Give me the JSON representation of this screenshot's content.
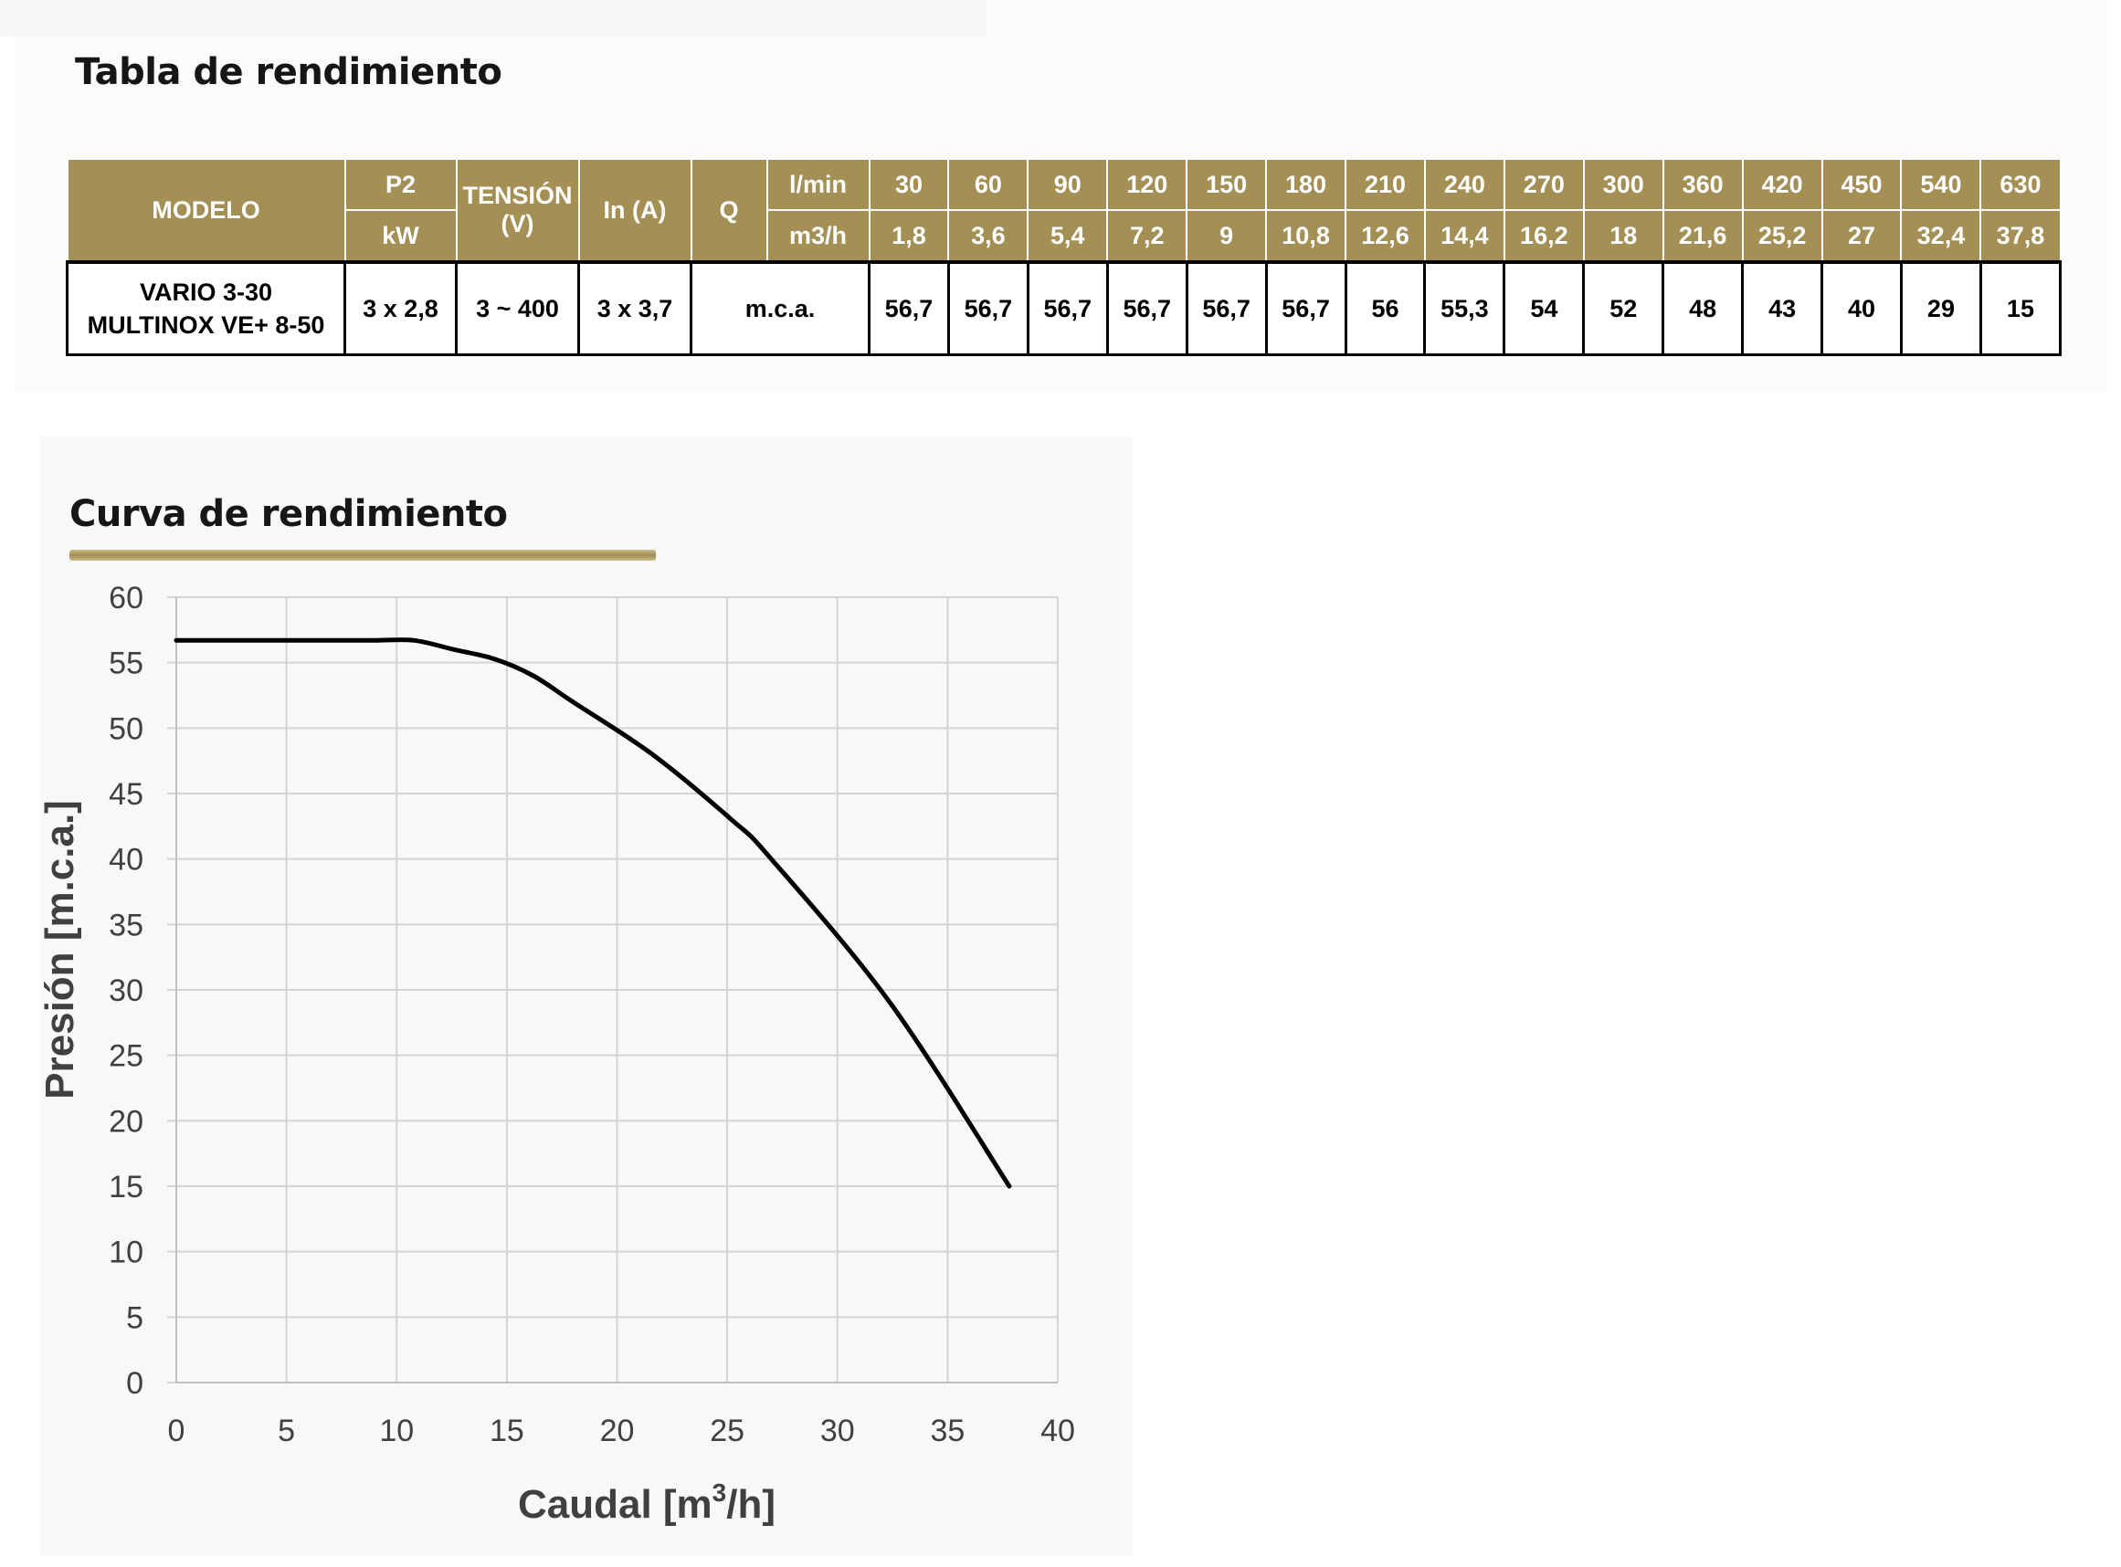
{
  "table_title": "Tabla de rendimiento",
  "curve_title": "Curva de rendimiento",
  "colors": {
    "header_bg": "#a48f55",
    "header_text": "#ffffff",
    "accent_bar": "#9e8d52",
    "curve": "#000000",
    "grid": "#d4d4d4"
  },
  "table": {
    "h_modelo": "MODELO",
    "h_p2": "P2",
    "h_kw": "kW",
    "h_tension_1": "TENSIÓN",
    "h_tension_2": "(V)",
    "h_in": "In (A)",
    "h_q": "Q",
    "h_lmin": "l/min",
    "h_m3h": "m3/h",
    "lmin": [
      "30",
      "60",
      "90",
      "120",
      "150",
      "180",
      "210",
      "240",
      "270",
      "300",
      "360",
      "420",
      "450",
      "540",
      "630"
    ],
    "m3h": [
      "1,8",
      "3,6",
      "5,4",
      "7,2",
      "9",
      "10,8",
      "12,6",
      "14,4",
      "16,2",
      "18",
      "21,6",
      "25,2",
      "27",
      "32,4",
      "37,8"
    ],
    "row": {
      "model_1": "VARIO 3-30",
      "model_2": "MULTINOX VE+ 8-50",
      "p2": "3 x 2,8",
      "tension": "3 ~ 400",
      "in": "3 x 3,7",
      "unit": "m.c.a.",
      "values": [
        "56,7",
        "56,7",
        "56,7",
        "56,7",
        "56,7",
        "56,7",
        "56",
        "55,3",
        "54",
        "52",
        "48",
        "43",
        "40",
        "29",
        "15"
      ]
    }
  },
  "chart_data": {
    "type": "line",
    "title": "Curva de rendimiento",
    "xlabel_main": "Caudal [m",
    "xlabel_sup": "3",
    "xlabel_end": "/h]",
    "ylabel": "Presión [m.c.a.]",
    "xlim": [
      0,
      40
    ],
    "ylim": [
      0,
      60
    ],
    "xticks": [
      0,
      5,
      10,
      15,
      20,
      25,
      30,
      35,
      40
    ],
    "yticks": [
      0,
      5,
      10,
      15,
      20,
      25,
      30,
      35,
      40,
      45,
      50,
      55,
      60
    ],
    "grid": true,
    "series": [
      {
        "name": "VARIO 3-30 / MULTINOX VE+ 8-50",
        "x": [
          0,
          1.8,
          3.6,
          5.4,
          7.2,
          9,
          10.8,
          12.6,
          14.4,
          16.2,
          18,
          21.6,
          25.2,
          27,
          32.4,
          37.8
        ],
        "y": [
          56.7,
          56.7,
          56.7,
          56.7,
          56.7,
          56.7,
          56.7,
          56,
          55.3,
          54,
          52,
          48,
          43,
          40,
          29,
          15
        ]
      }
    ]
  }
}
